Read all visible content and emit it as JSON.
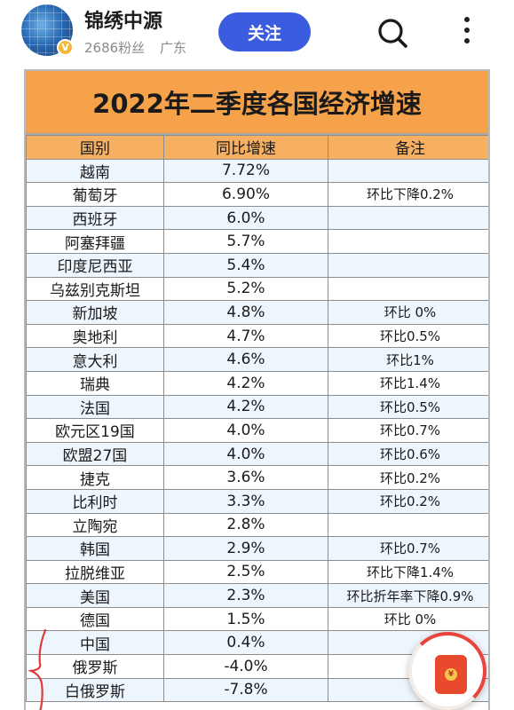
{
  "header": {
    "author_name": "锦绣中源",
    "fans": "2686粉丝",
    "location": "广东",
    "follow_label": "关注",
    "verified_badge": "V",
    "accent_color": "#3c5ce0"
  },
  "sheet": {
    "title": "2022年二季度各国经济增速",
    "columns": [
      "国别",
      "同比增速",
      "备注"
    ],
    "rows": [
      {
        "country": "越南",
        "growth": "7.72%",
        "note": ""
      },
      {
        "country": "葡萄牙",
        "growth": "6.90%",
        "note": "环比下降0.2%"
      },
      {
        "country": "西班牙",
        "growth": "6.0%",
        "note": ""
      },
      {
        "country": "阿塞拜疆",
        "growth": "5.7%",
        "note": ""
      },
      {
        "country": "印度尼西亚",
        "growth": "5.4%",
        "note": ""
      },
      {
        "country": "乌兹别克斯坦",
        "growth": "5.2%",
        "note": ""
      },
      {
        "country": "新加坡",
        "growth": "4.8%",
        "note": "环比 0%"
      },
      {
        "country": "奥地利",
        "growth": "4.7%",
        "note": "环比0.5%"
      },
      {
        "country": "意大利",
        "growth": "4.6%",
        "note": "环比1%"
      },
      {
        "country": "瑞典",
        "growth": "4.2%",
        "note": "环比1.4%"
      },
      {
        "country": "法国",
        "growth": "4.2%",
        "note": "环比0.5%"
      },
      {
        "country": "欧元区19国",
        "growth": "4.0%",
        "note": "环比0.7%"
      },
      {
        "country": "欧盟27国",
        "growth": "4.0%",
        "note": "环比0.6%"
      },
      {
        "country": "捷克",
        "growth": "3.6%",
        "note": "环比0.2%"
      },
      {
        "country": "比利时",
        "growth": "3.3%",
        "note": "环比0.2%"
      },
      {
        "country": "立陶宛",
        "growth": "2.8%",
        "note": ""
      },
      {
        "country": "韩国",
        "growth": "2.9%",
        "note": "环比0.7%"
      },
      {
        "country": "拉脱维亚",
        "growth": "2.5%",
        "note": "环比下降1.4%"
      },
      {
        "country": "美国",
        "growth": "2.3%",
        "note": "环比折年率下降0.9%"
      },
      {
        "country": "德国",
        "growth": "1.5%",
        "note": "环比 0%"
      },
      {
        "country": "中国",
        "growth": "0.4%",
        "note": ""
      },
      {
        "country": "俄罗斯",
        "growth": "-4.0%",
        "note": ""
      },
      {
        "country": "白俄罗斯",
        "growth": "-7.8%",
        "note": ""
      }
    ],
    "header_color": "#f7b061",
    "title_color": "#f6a24a",
    "stripe_color": "#eef6fd"
  },
  "float_button": {
    "icon": "red-envelope-icon",
    "coin_symbol": "¥"
  }
}
